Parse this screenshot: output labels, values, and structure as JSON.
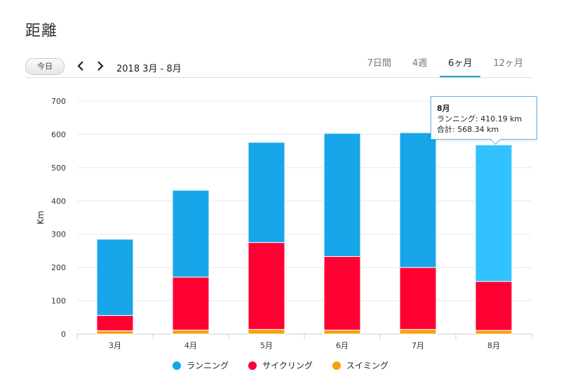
{
  "page": {
    "title": "距離"
  },
  "toolbar": {
    "today_label": "今日",
    "period_label": "2018 3月 - 8月",
    "tabs": [
      {
        "label": "7日間",
        "active": false
      },
      {
        "label": "4週",
        "active": false
      },
      {
        "label": "6ヶ月",
        "active": true
      },
      {
        "label": "12ヶ月",
        "active": false
      }
    ]
  },
  "tooltip": {
    "title": "8月",
    "line1": "ランニング: 410.19 km",
    "line2": "合計: 568.34 km"
  },
  "colors": {
    "running": "#17a6ea",
    "running_highlight": "#31c2ff",
    "cycling": "#ff0033",
    "swimming": "#f5a20c",
    "accent": "#1aa0e0"
  },
  "icons": {
    "prev": "chevron-left-icon",
    "next": "chevron-right-icon"
  },
  "chart_data": {
    "type": "bar",
    "stacked": true,
    "categories": [
      "3月",
      "4月",
      "5月",
      "6月",
      "7月",
      "8月"
    ],
    "series": [
      {
        "name": "スイミング",
        "values": [
          10,
          12,
          14,
          12,
          14,
          11
        ]
      },
      {
        "name": "サイクリング",
        "values": [
          46,
          159,
          261,
          221,
          186,
          147
        ]
      },
      {
        "name": "ランニング",
        "values": [
          229,
          261,
          301,
          370,
          405,
          410.19
        ]
      }
    ],
    "totals": [
      285,
      432,
      576,
      603,
      605,
      568.34
    ],
    "ylabel": "Km",
    "ylim": [
      0,
      700
    ],
    "yticks": [
      0,
      100,
      200,
      300,
      400,
      500,
      600,
      700
    ],
    "grid": true,
    "legend_position": "bottom",
    "highlighted_category": "8月"
  }
}
